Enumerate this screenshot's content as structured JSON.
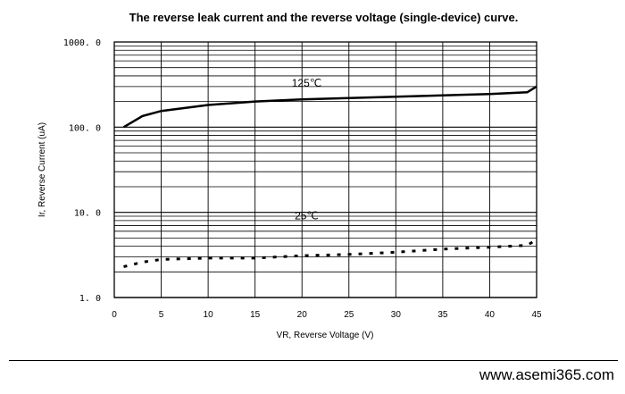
{
  "chart_data": {
    "type": "line",
    "title": "The reverse leak current and the reverse voltage (single-device) curve.",
    "xlabel": "VR, Reverse Voltage (V)",
    "ylabel": "Ir, Reverse Current (uA)",
    "xlim": [
      0,
      45
    ],
    "ylim": [
      1,
      1000
    ],
    "yscale": "log",
    "grid": true,
    "xticks": [
      "0",
      "5",
      "10",
      "15",
      "20",
      "25",
      "30",
      "35",
      "40",
      "45"
    ],
    "yticks": [
      "1. 0",
      "10. 0",
      "100. 0",
      "1000. 0"
    ],
    "series": [
      {
        "name": "125℃",
        "style": "solid",
        "x": [
          1,
          3,
          5,
          10,
          15,
          20,
          25,
          30,
          35,
          40,
          44,
          45
        ],
        "y": [
          100,
          135,
          155,
          182,
          200,
          212,
          220,
          228,
          236,
          245,
          257,
          300
        ]
      },
      {
        "name": "25℃",
        "style": "dotted",
        "x": [
          1,
          3,
          5,
          10,
          15,
          20,
          25,
          30,
          35,
          40,
          44,
          45
        ],
        "y": [
          2.3,
          2.6,
          2.8,
          2.9,
          2.9,
          3.1,
          3.2,
          3.4,
          3.7,
          3.9,
          4.1,
          4.8
        ]
      }
    ]
  },
  "footer": {
    "website": "www.asemi365.com"
  }
}
